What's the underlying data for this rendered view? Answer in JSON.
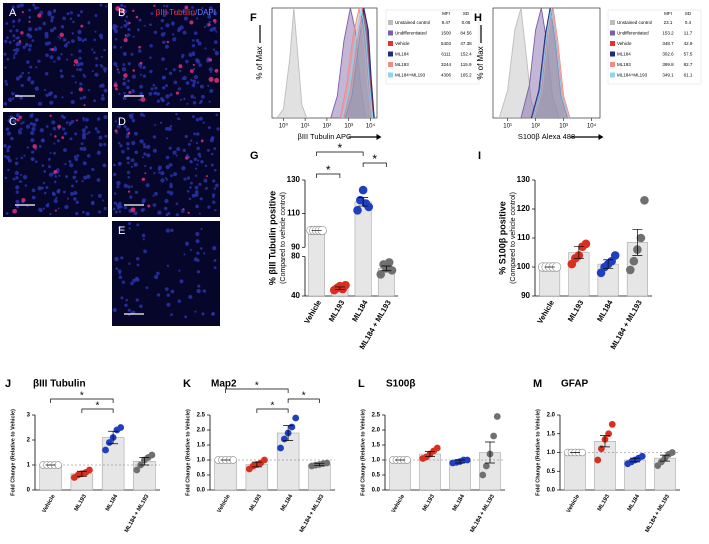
{
  "image_panels": [
    {
      "label": "A"
    },
    {
      "label": "B",
      "stain": "βIII Tubulin",
      "counterstain": "/DAPI"
    },
    {
      "label": "C"
    },
    {
      "label": "D"
    },
    {
      "label": "E"
    }
  ],
  "chart_data": [
    {
      "type": "flow",
      "panel": "F",
      "ylabel": "% of Max",
      "xlabel": "βIII Tubulin APC",
      "log_x": true,
      "xlim": [
        0.3,
        20000
      ],
      "xticks": [
        {
          "value": 1,
          "label": "10⁰"
        },
        {
          "value": 10,
          "label": "10¹"
        },
        {
          "value": 100,
          "label": "10²"
        },
        {
          "value": 1000,
          "label": "10³"
        },
        {
          "value": 10000,
          "label": "10⁴"
        }
      ],
      "ylim": [
        0,
        100
      ],
      "table_header": [
        "MFI",
        "SD"
      ],
      "series": [
        {
          "name": "Unstained control",
          "color": "#bdbdbd",
          "mfi": 9.47,
          "sd": 0.06,
          "x": [
            0.5,
            1,
            2,
            3,
            4.5,
            7,
            12
          ],
          "values": [
            0,
            8,
            55,
            100,
            60,
            12,
            0
          ]
        },
        {
          "name": "Undifferentiated",
          "color": "#7b5ea7",
          "mfi": 1500,
          "sd": 84.56,
          "x": [
            150,
            300,
            600,
            1200,
            2000,
            3500,
            6000
          ],
          "values": [
            0,
            20,
            70,
            100,
            80,
            30,
            0
          ]
        },
        {
          "name": "Vehicle",
          "color": "#e8312f",
          "mfi": 5403,
          "sd": 47.38,
          "x": [
            600,
            1200,
            2500,
            4500,
            7000,
            10000,
            14000
          ],
          "values": [
            0,
            25,
            70,
            100,
            85,
            40,
            0
          ]
        },
        {
          "name": "ML184",
          "color": "#1f2a7a",
          "mfi": 6111,
          "sd": 152.4,
          "x": [
            700,
            1400,
            2800,
            5000,
            8000,
            11000,
            15000
          ],
          "values": [
            0,
            20,
            65,
            100,
            80,
            35,
            0
          ]
        },
        {
          "name": "ML193",
          "color": "#f08c84",
          "mfi": 3244,
          "sd": 115.9,
          "x": [
            400,
            800,
            1600,
            3000,
            5000,
            8000,
            12000
          ],
          "values": [
            0,
            30,
            75,
            100,
            70,
            25,
            0
          ]
        },
        {
          "name": "ML184+ML193",
          "color": "#8fd3f0",
          "mfi": 4306,
          "sd": 165.2,
          "x": [
            500,
            1000,
            2000,
            3800,
            6000,
            9000,
            13000
          ],
          "values": [
            0,
            25,
            70,
            100,
            75,
            30,
            0
          ]
        }
      ]
    },
    {
      "type": "flow",
      "panel": "H",
      "ylabel": "% of Max",
      "xlabel": "S100β Alexa 488",
      "log_x": true,
      "xlim": [
        3,
        20000
      ],
      "xticks": [
        {
          "value": 10,
          "label": "10¹"
        },
        {
          "value": 100,
          "label": "10²"
        },
        {
          "value": 1000,
          "label": "10³"
        },
        {
          "value": 10000,
          "label": "10⁴"
        }
      ],
      "ylim": [
        0,
        100
      ],
      "table_header": [
        "MFI",
        "SD"
      ],
      "series": [
        {
          "name": "Unstained control",
          "color": "#bdbdbd",
          "mfi": 23.1,
          "sd": 0.4,
          "x": [
            5,
            10,
            18,
            30,
            45,
            70,
            120
          ],
          "values": [
            0,
            25,
            80,
            100,
            60,
            15,
            0
          ]
        },
        {
          "name": "Undifferentiated",
          "color": "#7b5ea7",
          "mfi": 153.2,
          "sd": 11.7,
          "x": [
            30,
            60,
            100,
            160,
            250,
            400,
            700
          ],
          "values": [
            0,
            30,
            80,
            100,
            70,
            20,
            0
          ]
        },
        {
          "name": "Vehicle",
          "color": "#e8312f",
          "mfi": 348.7,
          "sd": 42.9,
          "x": [
            80,
            150,
            250,
            380,
            550,
            900,
            1500
          ],
          "values": [
            0,
            25,
            75,
            100,
            70,
            20,
            0
          ]
        },
        {
          "name": "ML184",
          "color": "#1f2a7a",
          "mfi": 302.6,
          "sd": 57.5,
          "x": [
            70,
            130,
            220,
            330,
            500,
            800,
            1400
          ],
          "values": [
            0,
            25,
            75,
            100,
            70,
            20,
            0
          ]
        },
        {
          "name": "ML193",
          "color": "#f08c84",
          "mfi": 399.8,
          "sd": 82.7,
          "x": [
            90,
            170,
            280,
            420,
            620,
            1000,
            1700
          ],
          "values": [
            0,
            25,
            75,
            100,
            70,
            20,
            0
          ]
        },
        {
          "name": "ML184+ML193",
          "color": "#8fd3f0",
          "mfi": 349.1,
          "sd": 61.1,
          "x": [
            80,
            150,
            250,
            370,
            540,
            880,
            1500
          ],
          "values": [
            0,
            25,
            75,
            100,
            70,
            20,
            0
          ]
        }
      ]
    },
    {
      "type": "dotbar",
      "panel": "G",
      "ylabel": "% βIII Tubulin positive",
      "ylabel2": "(Compared to vehicle control)",
      "ylim": [
        40,
        130
      ],
      "ybreak": [
        80,
        90
      ],
      "yticks": [
        40,
        80,
        90,
        110,
        130
      ],
      "categories": [
        "Vehicle",
        "ML193",
        "ML184",
        "ML184 + ML193"
      ],
      "values": [
        100,
        48,
        117,
        68
      ],
      "errors": [
        0,
        1.2,
        2.5,
        2.4
      ],
      "points": [
        [
          100,
          100,
          100,
          100,
          100
        ],
        [
          46,
          48,
          50,
          47,
          51
        ],
        [
          112,
          118,
          124,
          116,
          114
        ],
        [
          62,
          72,
          68,
          74,
          66
        ]
      ],
      "point_colors": [
        "#ffffff",
        "#d7301f",
        "#1f3fbf",
        "#707070"
      ],
      "bar_color": "#e6e6e6",
      "significance": [
        {
          "from": 0,
          "to": 1,
          "label": "*"
        },
        {
          "from": 2,
          "to": 3,
          "label": "*"
        },
        {
          "from": 0,
          "to": 2,
          "label": "*"
        }
      ]
    },
    {
      "type": "dotbar",
      "panel": "I",
      "ylabel": "% S100β positive",
      "ylabel2": "(Compared to vehicle control)",
      "ylim": [
        90,
        130
      ],
      "yticks": [
        90,
        100,
        110,
        120,
        130
      ],
      "categories": [
        "Vehicle",
        "ML193",
        "ML184",
        "ML184 + ML193"
      ],
      "values": [
        100,
        105,
        101,
        108.5
      ],
      "errors": [
        0,
        2,
        1.5,
        4.5
      ],
      "points": [
        [
          100,
          100,
          100,
          100,
          100
        ],
        [
          101,
          103,
          104,
          107,
          108
        ],
        [
          98,
          100,
          101,
          102,
          104
        ],
        [
          99,
          102,
          106,
          110,
          123
        ]
      ],
      "point_colors": [
        "#ffffff",
        "#d7301f",
        "#1f3fbf",
        "#707070"
      ],
      "bar_color": "#e6e6e6",
      "significance": []
    },
    {
      "type": "dotbar",
      "panel": "J",
      "title": "βIII Tubulin",
      "ylabel": "Fold Change (Relative to Vehicle)",
      "ylim": [
        0,
        3
      ],
      "yticks": [
        0,
        1,
        2,
        3
      ],
      "refline": 1,
      "categories": [
        "Vehicle",
        "ML193",
        "ML184",
        "ML184 + ML193"
      ],
      "values": [
        1,
        0.65,
        2.1,
        1.15
      ],
      "errors": [
        0,
        0.1,
        0.25,
        0.15
      ],
      "points": [
        [
          1,
          1,
          1,
          1,
          1
        ],
        [
          0.5,
          0.6,
          0.65,
          0.7,
          0.8
        ],
        [
          1.6,
          1.9,
          2.1,
          2.4,
          2.5
        ],
        [
          0.8,
          1.0,
          1.2,
          1.3,
          1.4
        ]
      ],
      "point_colors": [
        "#ffffff",
        "#d7301f",
        "#1f3fbf",
        "#707070"
      ],
      "bar_color": "#e6e6e6",
      "significance": [
        {
          "from": 1,
          "to": 2,
          "label": "*"
        },
        {
          "from": 0,
          "to": 2,
          "label": "*"
        }
      ]
    },
    {
      "type": "dotbar",
      "panel": "K",
      "title": "Map2",
      "ylabel": "Fold Change (Relative to Vehicle)",
      "ylim": [
        0,
        2.5
      ],
      "yticks": [
        {
          "value": 0,
          "label": "0.0"
        },
        0.5,
        {
          "value": 1,
          "label": "1.0"
        },
        1.5,
        {
          "value": 2,
          "label": "2.0"
        },
        2.5
      ],
      "refline": 1,
      "categories": [
        "Vehicle",
        "ML193",
        "ML184",
        "ML184 + ML193"
      ],
      "values": [
        1,
        0.85,
        1.9,
        0.85
      ],
      "errors": [
        0,
        0.08,
        0.25,
        0.04
      ],
      "points": [
        [
          1,
          1,
          1,
          1,
          1
        ],
        [
          0.7,
          0.8,
          0.85,
          0.9,
          1.0
        ],
        [
          1.4,
          1.7,
          1.9,
          2.1,
          2.4
        ],
        [
          0.8,
          0.83,
          0.85,
          0.88,
          0.9
        ]
      ],
      "point_colors": [
        "#ffffff",
        "#d7301f",
        "#1f3fbf",
        "#707070"
      ],
      "bar_color": "#e6e6e6",
      "significance": [
        {
          "from": 1,
          "to": 2,
          "label": "*"
        },
        {
          "from": 2,
          "to": 3,
          "label": "*"
        },
        {
          "from": 0,
          "to": 2,
          "label": "*"
        }
      ]
    },
    {
      "type": "dotbar",
      "panel": "L",
      "title": "S100β",
      "ylabel": "Fold Change (Relative to Vehicle)",
      "ylim": [
        0,
        2.5
      ],
      "yticks": [
        {
          "value": 0,
          "label": "0.0"
        },
        0.5,
        {
          "value": 1,
          "label": "1.0"
        },
        1.5,
        {
          "value": 2,
          "label": "2.0"
        },
        2.5
      ],
      "refline": 1,
      "categories": [
        "Vehicle",
        "ML193",
        "ML184",
        "ML184 + ML193"
      ],
      "values": [
        1,
        1.2,
        0.95,
        1.25
      ],
      "errors": [
        0,
        0.08,
        0.05,
        0.35
      ],
      "points": [
        [
          1,
          1,
          1,
          1,
          1
        ],
        [
          1.05,
          1.1,
          1.2,
          1.3,
          1.4
        ],
        [
          0.9,
          0.92,
          0.95,
          1.0,
          1.0
        ],
        [
          0.5,
          0.8,
          1.2,
          1.8,
          2.45
        ]
      ],
      "point_colors": [
        "#ffffff",
        "#d7301f",
        "#1f3fbf",
        "#707070"
      ],
      "bar_color": "#e6e6e6",
      "significance": []
    },
    {
      "type": "dotbar",
      "panel": "M",
      "title": "GFAP",
      "ylabel": "Fold Change (Relative to Vehicle)",
      "ylim": [
        0,
        2
      ],
      "yticks": [
        {
          "value": 0,
          "label": "0.0"
        },
        0.5,
        {
          "value": 1,
          "label": "1.0"
        },
        1.5,
        {
          "value": 2,
          "label": "2.0"
        }
      ],
      "refline": 1,
      "categories": [
        "Vehicle",
        "ML193",
        "ML184",
        "ML184 + ML193"
      ],
      "values": [
        1,
        1.3,
        0.8,
        0.85
      ],
      "errors": [
        0,
        0.15,
        0.05,
        0.08
      ],
      "points": [
        [
          1,
          1,
          1,
          1,
          1
        ],
        [
          0.8,
          1.1,
          1.35,
          1.5,
          1.75
        ],
        [
          0.7,
          0.75,
          0.8,
          0.85,
          0.9
        ],
        [
          0.65,
          0.75,
          0.85,
          0.95,
          1.0
        ]
      ],
      "point_colors": [
        "#ffffff",
        "#d7301f",
        "#1f3fbf",
        "#707070"
      ],
      "bar_color": "#e6e6e6",
      "significance": []
    }
  ]
}
